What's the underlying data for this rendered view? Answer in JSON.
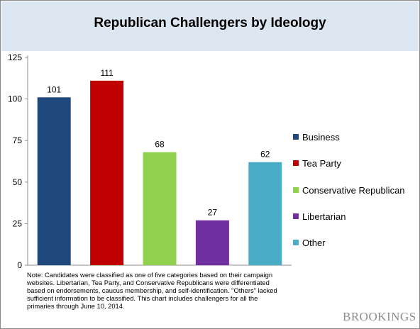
{
  "chart_data": {
    "type": "bar",
    "title": "Republican Challengers by Ideology",
    "categories": [
      "Business",
      "Tea Party",
      "Conservative Republican",
      "Libertarian",
      "Other"
    ],
    "values": [
      101,
      111,
      68,
      27,
      62
    ],
    "colors": [
      "#1f497d",
      "#c00000",
      "#92d050",
      "#7030a0",
      "#4bacc6"
    ],
    "data_labels": [
      "101",
      "111",
      "68",
      "27",
      "62"
    ],
    "yticks": [
      "0",
      "25",
      "50",
      "75",
      "100",
      "125"
    ],
    "ylim": [
      0,
      125
    ],
    "grid": false,
    "legend_position": "right",
    "note": "Note: Candidates were classified as one of five categories based on their campaign websites. Libertarian, Tea Party, and Conservative Republicans were differentiated based on endorsements, caucus membership, and self-identification. \"Others\" lacked sufficient information to be classified.  This chart includes challengers for all the primaries through June 10, 2014."
  },
  "brand": "BROOKINGS"
}
